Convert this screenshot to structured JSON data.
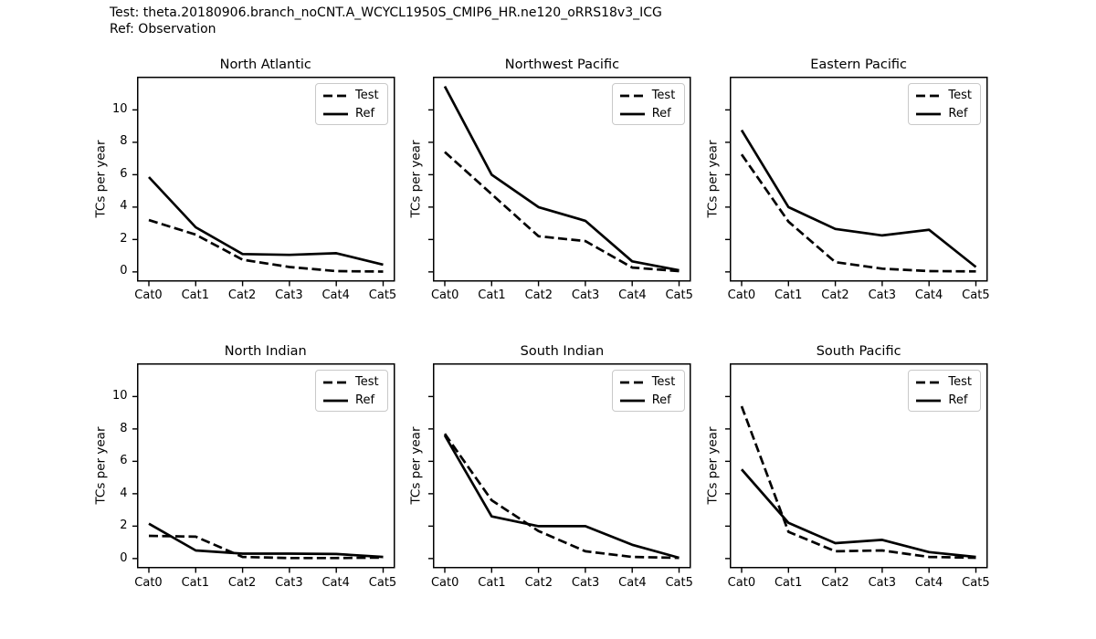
{
  "header": {
    "test_label": "Test: theta.20180906.branch_noCNT.A_WCYCL1950S_CMIP6_HR.ne120_oRRS18v3_ICG",
    "ref_label": "Ref: Observation"
  },
  "colors": {
    "line": "#000000",
    "background": "#ffffff",
    "legend_border": "#c9c9c9",
    "text": "#000000"
  },
  "legend": {
    "position": "upper right",
    "entries": [
      {
        "label": "Test",
        "style": "dashed"
      },
      {
        "label": "Ref",
        "style": "solid"
      }
    ]
  },
  "chart_data": [
    {
      "type": "line",
      "title": "North Atlantic",
      "ylabel": "TCs per year",
      "categories": [
        "Cat0",
        "Cat1",
        "Cat2",
        "Cat3",
        "Cat4",
        "Cat5"
      ],
      "yticks": [
        0,
        2,
        4,
        6,
        8,
        10
      ],
      "ylim": [
        -0.6,
        12.05
      ],
      "grid": false,
      "ytick_labels_visible": true,
      "series": [
        {
          "name": "Test",
          "style": "dashed",
          "values": [
            3.2,
            2.3,
            0.75,
            0.3,
            0.05,
            0.02
          ]
        },
        {
          "name": "Ref",
          "style": "solid",
          "values": [
            5.85,
            2.75,
            1.1,
            1.05,
            1.15,
            0.45
          ]
        }
      ]
    },
    {
      "type": "line",
      "title": "Northwest Pacific",
      "ylabel": "TCs per year",
      "categories": [
        "Cat0",
        "Cat1",
        "Cat2",
        "Cat3",
        "Cat4",
        "Cat5"
      ],
      "yticks": [
        0,
        2,
        4,
        6,
        8,
        10
      ],
      "ylim": [
        -0.6,
        12.05
      ],
      "grid": false,
      "ytick_labels_visible": false,
      "series": [
        {
          "name": "Test",
          "style": "dashed",
          "values": [
            7.4,
            4.8,
            2.2,
            1.9,
            0.27,
            0.05
          ]
        },
        {
          "name": "Ref",
          "style": "solid",
          "values": [
            11.45,
            6.0,
            4.0,
            3.15,
            0.65,
            0.1
          ]
        }
      ]
    },
    {
      "type": "line",
      "title": "Eastern Pacific",
      "ylabel": "TCs per year",
      "categories": [
        "Cat0",
        "Cat1",
        "Cat2",
        "Cat3",
        "Cat4",
        "Cat5"
      ],
      "yticks": [
        0,
        2,
        4,
        6,
        8,
        10
      ],
      "ylim": [
        -0.6,
        12.05
      ],
      "grid": false,
      "ytick_labels_visible": false,
      "series": [
        {
          "name": "Test",
          "style": "dashed",
          "values": [
            7.25,
            3.1,
            0.6,
            0.2,
            0.05,
            0.03
          ]
        },
        {
          "name": "Ref",
          "style": "solid",
          "values": [
            8.75,
            4.0,
            2.65,
            2.25,
            2.6,
            0.3
          ]
        }
      ]
    },
    {
      "type": "line",
      "title": "North Indian",
      "ylabel": "TCs per year",
      "categories": [
        "Cat0",
        "Cat1",
        "Cat2",
        "Cat3",
        "Cat4",
        "Cat5"
      ],
      "yticks": [
        0,
        2,
        4,
        6,
        8,
        10
      ],
      "ylim": [
        -0.6,
        12.05
      ],
      "grid": false,
      "ytick_labels_visible": true,
      "series": [
        {
          "name": "Test",
          "style": "dashed",
          "values": [
            1.4,
            1.35,
            0.1,
            0.03,
            0.03,
            0.06
          ]
        },
        {
          "name": "Ref",
          "style": "solid",
          "values": [
            2.15,
            0.5,
            0.3,
            0.3,
            0.28,
            0.1
          ]
        }
      ]
    },
    {
      "type": "line",
      "title": "South Indian",
      "ylabel": "TCs per year",
      "categories": [
        "Cat0",
        "Cat1",
        "Cat2",
        "Cat3",
        "Cat4",
        "Cat5"
      ],
      "yticks": [
        0,
        2,
        4,
        6,
        8,
        10
      ],
      "ylim": [
        -0.6,
        12.05
      ],
      "grid": false,
      "ytick_labels_visible": false,
      "series": [
        {
          "name": "Test",
          "style": "dashed",
          "values": [
            7.7,
            3.6,
            1.7,
            0.45,
            0.1,
            0.04
          ]
        },
        {
          "name": "Ref",
          "style": "solid",
          "values": [
            7.6,
            2.6,
            2.0,
            2.0,
            0.85,
            0.05
          ]
        }
      ]
    },
    {
      "type": "line",
      "title": "South Pacific",
      "ylabel": "TCs per year",
      "categories": [
        "Cat0",
        "Cat1",
        "Cat2",
        "Cat3",
        "Cat4",
        "Cat5"
      ],
      "yticks": [
        0,
        2,
        4,
        6,
        8,
        10
      ],
      "ylim": [
        -0.6,
        12.05
      ],
      "grid": false,
      "ytick_labels_visible": false,
      "series": [
        {
          "name": "Test",
          "style": "dashed",
          "values": [
            9.4,
            1.65,
            0.45,
            0.5,
            0.1,
            0.05
          ]
        },
        {
          "name": "Ref",
          "style": "solid",
          "values": [
            5.5,
            2.2,
            0.95,
            1.15,
            0.4,
            0.1
          ]
        }
      ]
    }
  ]
}
